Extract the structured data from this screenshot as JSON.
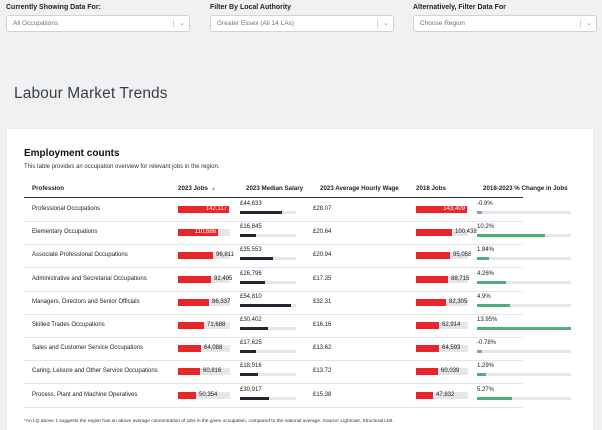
{
  "filters": [
    {
      "label": "Currently Showing Data For:",
      "value": "All Occupations"
    },
    {
      "label": "Filter By Local Authority",
      "value": "Greater Essex (All 14 LAs)"
    },
    {
      "label": "Alternatively, Filter Data For",
      "value": "Choose Region"
    }
  ],
  "page_title": "Labour Market Trends",
  "card": {
    "title": "Employment counts",
    "subtitle": "This table provides an occupation overview for relevant jobs in the region.",
    "footnote": "*An LQ above 1 suggests the region has an above average concentration of jobs in the given occupation, compared to the national average. Source: Lightcast, Structural LMI."
  },
  "columns": [
    "Profession",
    "2023 Jobs",
    "2023 Median Salary",
    "2023 Average Hourly Wage",
    "2018 Jobs",
    "2018-2023 % Change in Jobs"
  ],
  "colors": {
    "jobs_bar": "#e8262a",
    "salary_bar": "#1f2830",
    "positive_change": "#4caf7d",
    "negative_change": "#9b8fe0"
  },
  "rows": [
    {
      "profession": "Professional Occupations",
      "jobs_2023": "142,117",
      "salary": "£44,633",
      "wage": "£28.07",
      "jobs_2018": "143,409",
      "change": "-0.9%"
    },
    {
      "profession": "Elementary Occupations",
      "jobs_2023": "110,686",
      "salary": "£16,845",
      "wage": "£20.64",
      "jobs_2018": "100,438",
      "change": "10.2%"
    },
    {
      "profession": "Associate Professional Occupations",
      "jobs_2023": "96,811",
      "salary": "£35,553",
      "wage": "£20.94",
      "jobs_2018": "95,058",
      "change": "1.84%"
    },
    {
      "profession": "Administrative and Secretarial Occupations",
      "jobs_2023": "92,495",
      "salary": "£26,796",
      "wage": "£17.35",
      "jobs_2018": "88,715",
      "change": "4.26%"
    },
    {
      "profession": "Managers, Directors and Senior Officials",
      "jobs_2023": "86,337",
      "salary": "£54,810",
      "wage": "£32.31",
      "jobs_2018": "82,305",
      "change": "4.9%"
    },
    {
      "profession": "Skilled Trades Occupations",
      "jobs_2023": "71,688",
      "salary": "£30,402",
      "wage": "£16.16",
      "jobs_2018": "62,914",
      "change": "13.95%"
    },
    {
      "profession": "Sales and Customer Service Occupations",
      "jobs_2023": "64,088",
      "salary": "£17,625",
      "wage": "£13.62",
      "jobs_2018": "64,593",
      "change": "-0.78%"
    },
    {
      "profession": "Caring, Leisure and Other Service Occupations",
      "jobs_2023": "60,816",
      "salary": "£18,916",
      "wage": "£13.72",
      "jobs_2018": "60,039",
      "change": "1.29%"
    },
    {
      "profession": "Process, Plant and Machine Operatives",
      "jobs_2023": "50,354",
      "salary": "£30,917",
      "wage": "£15.38",
      "jobs_2018": "47,832",
      "change": "5.27%"
    }
  ]
}
